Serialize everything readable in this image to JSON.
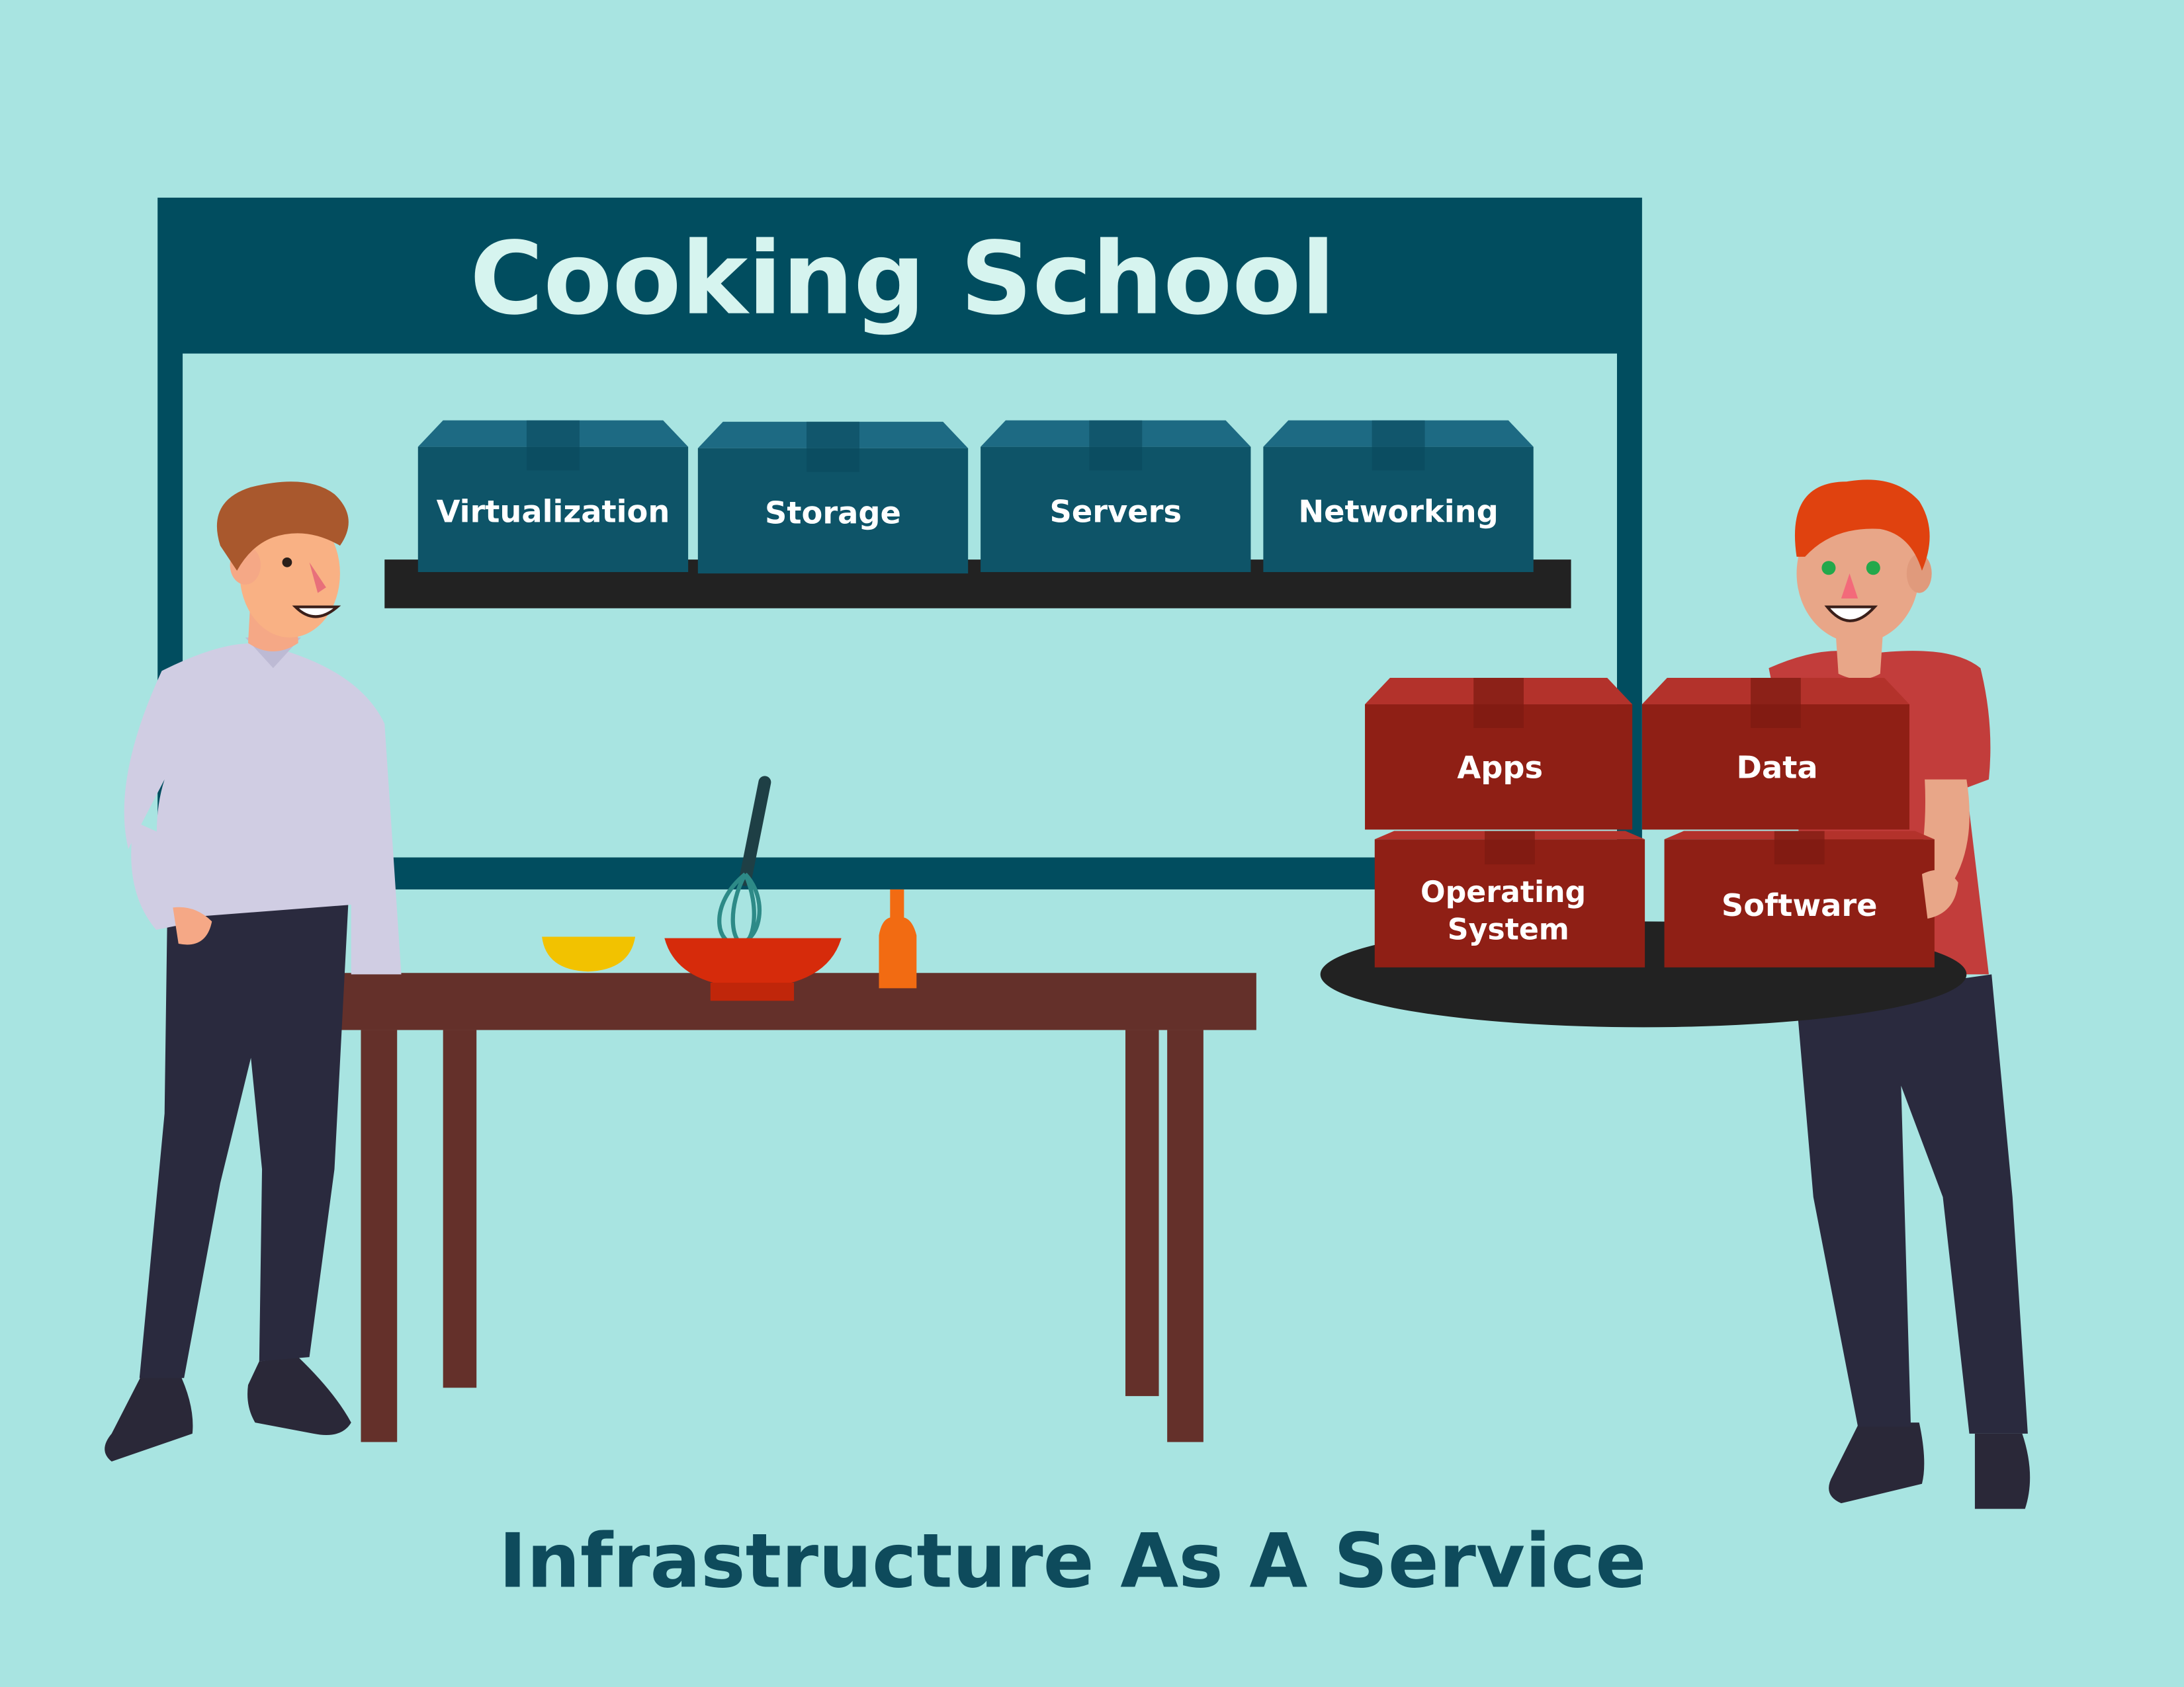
{
  "board": {
    "title": "Cooking School"
  },
  "shelf": {
    "boxes": [
      {
        "label": "Virtualization"
      },
      {
        "label": "Storage"
      },
      {
        "label": "Servers"
      },
      {
        "label": "Networking"
      }
    ]
  },
  "tray": {
    "boxes": [
      {
        "label": "Apps"
      },
      {
        "label": "Data"
      },
      {
        "label": [
          "Operating",
          "System"
        ]
      },
      {
        "label": "Software"
      }
    ]
  },
  "caption": "Infrastructure As A Service",
  "colors": {
    "background": "#a8e4e1",
    "board": "#014d5f",
    "teal_box": "#0e5468",
    "red_box": "#8f1f15",
    "title_text": "#d6f4ef",
    "caption_text": "#0e4b5c"
  }
}
